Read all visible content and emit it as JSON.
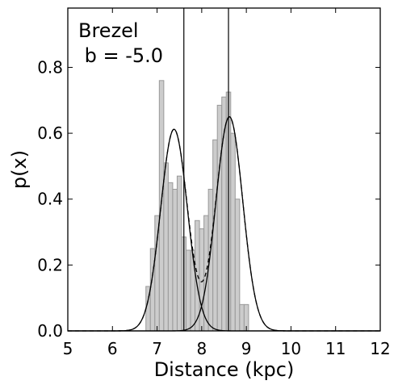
{
  "chart_data": {
    "type": "bar",
    "xlabel": "Distance (kpc)",
    "ylabel": "p(x)",
    "xlim": [
      5,
      12
    ],
    "ylim": [
      0,
      0.98
    ],
    "xticks": [
      "5",
      "6",
      "7",
      "8",
      "9",
      "10",
      "11",
      "12"
    ],
    "yticks": [
      "0.0",
      "0.2",
      "0.4",
      "0.6",
      "0.8"
    ],
    "annotation_lines": [
      "Brezel",
      " b = -5.0"
    ],
    "histogram": {
      "bin_width": 0.1,
      "bin_starts": [
        6.75,
        6.85,
        6.95,
        7.05,
        7.15,
        7.25,
        7.35,
        7.45,
        7.55,
        7.65,
        7.75,
        7.85,
        7.95,
        8.05,
        8.15,
        8.25,
        8.35,
        8.45,
        8.55,
        8.65,
        8.75,
        8.85,
        8.95,
        9.05,
        9.15,
        9.25
      ],
      "heights": [
        0.135,
        0.25,
        0.35,
        0.76,
        0.51,
        0.45,
        0.43,
        0.47,
        0.285,
        0.245,
        0.245,
        0.335,
        0.31,
        0.35,
        0.43,
        0.58,
        0.685,
        0.71,
        0.725,
        0.6,
        0.4,
        0.08,
        0.08,
        0.0,
        0.0,
        0.0
      ],
      "fill_color": "#cccccc",
      "edge_color": "#999999"
    },
    "series": [
      {
        "kind": "gaussian",
        "mu": 7.38,
        "sigma": 0.3,
        "peak": 0.612,
        "style": "solid"
      },
      {
        "kind": "gaussian",
        "mu": 8.62,
        "sigma": 0.3,
        "peak": 0.65,
        "style": "solid"
      },
      {
        "kind": "gaussian-sum",
        "components": [
          0,
          1
        ],
        "style": "dashed"
      }
    ],
    "vlines": [
      7.6,
      8.6
    ],
    "grid": false
  }
}
